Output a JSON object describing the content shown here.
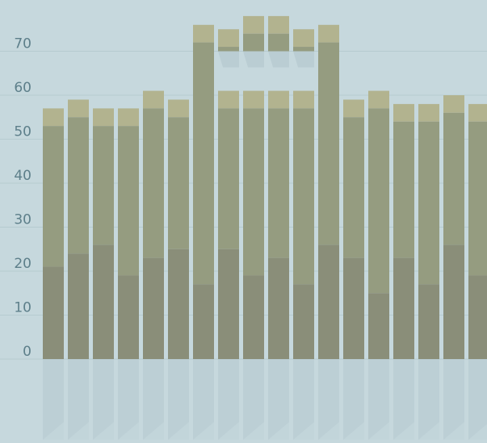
{
  "chart_data": {
    "type": "bar",
    "title": "",
    "xlabel": "",
    "ylabel": "",
    "ylim": [
      0,
      75
    ],
    "y_ticks": [
      "0",
      "10",
      "20",
      "30",
      "40",
      "50",
      "60",
      "70"
    ],
    "grid": true,
    "categories": [
      "",
      "",
      "",
      "",
      "",
      "",
      "",
      "",
      "",
      "",
      "",
      "",
      "",
      "",
      "",
      "",
      "",
      "",
      ""
    ],
    "series": [
      {
        "values": [
          21,
          24,
          26,
          19,
          23,
          25,
          17,
          25,
          19,
          23,
          17,
          26,
          23,
          15,
          23,
          17,
          26,
          19,
          21
        ]
      },
      {
        "values": [
          57,
          59,
          57,
          57,
          61,
          59,
          76,
          61,
          61,
          61,
          61,
          76,
          59,
          61,
          58,
          58,
          60,
          58,
          58
        ]
      },
      {
        "values": [
          null,
          null,
          null,
          null,
          null,
          null,
          null,
          75,
          78,
          78,
          75,
          null,
          null,
          null,
          null,
          null,
          null,
          null,
          null
        ]
      }
    ],
    "cap_height": 4,
    "colors": {
      "background": "#c6d8dd",
      "gridline": "#b6cbd0",
      "tick_label": "#5d7f8a",
      "bar_top": "#959c80",
      "bar_bottom": "#8a8e79",
      "bar_cap": "#b2b38f",
      "shadow": "#b5c9ce"
    }
  }
}
